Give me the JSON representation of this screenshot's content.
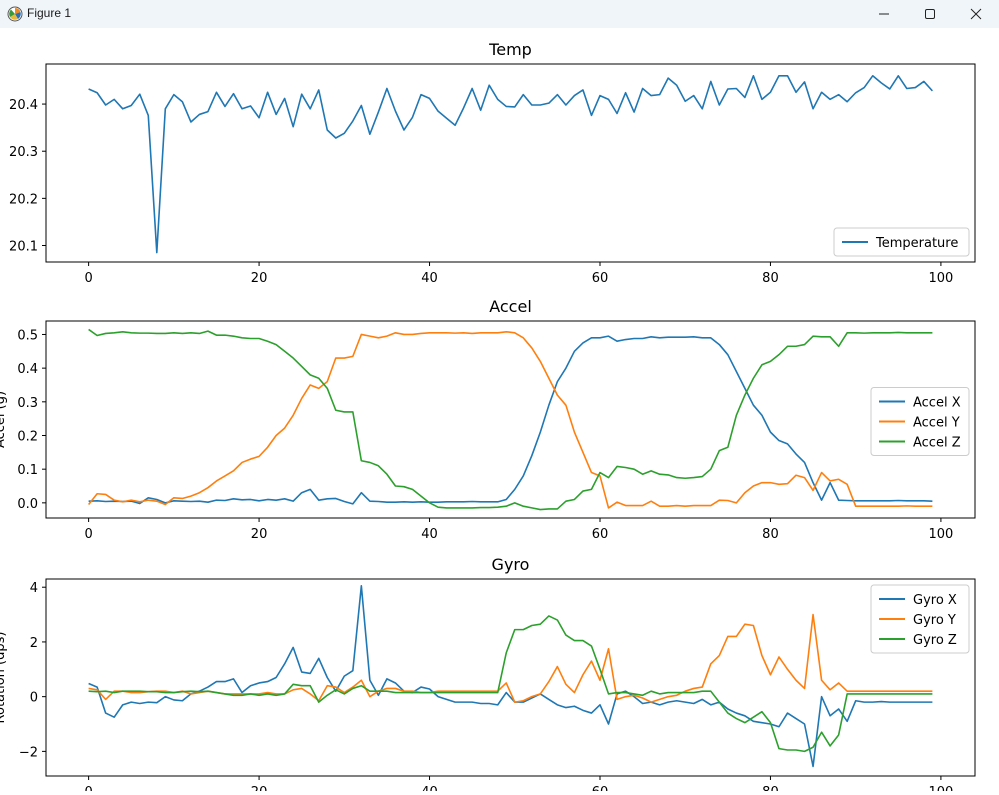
{
  "window": {
    "title": "Figure 1",
    "icons": {
      "app": "matplotlib-figure-icon",
      "minimize": "minimize-icon",
      "maximize": "maximize-icon",
      "close": "close-icon"
    }
  },
  "colors": {
    "c0": "#1f77b4",
    "c1": "#ff7f0e",
    "c2": "#2ca02c"
  },
  "chart_data": [
    {
      "type": "line",
      "title": "Temp",
      "xlabel": "",
      "ylabel": "",
      "xlim": [
        -5,
        104
      ],
      "ylim": [
        20.065,
        20.485
      ],
      "xticks": [
        0,
        20,
        40,
        60,
        80,
        100
      ],
      "yticks": [
        20.1,
        20.2,
        20.3,
        20.4
      ],
      "ytick_labels": [
        "20.1",
        "20.2",
        "20.3",
        "20.4"
      ],
      "grid": false,
      "legend": "lower-right",
      "series": [
        {
          "name": "Temperature",
          "color": "#1f77b4",
          "values": [
            20.432,
            20.424,
            20.398,
            20.41,
            20.39,
            20.397,
            20.421,
            20.376,
            20.085,
            20.39,
            20.42,
            20.405,
            20.362,
            20.378,
            20.384,
            20.425,
            20.395,
            20.422,
            20.39,
            20.396,
            20.371,
            20.425,
            20.378,
            20.412,
            20.352,
            20.421,
            20.39,
            20.43,
            20.345,
            20.328,
            20.338,
            20.364,
            20.397,
            20.336,
            20.383,
            20.433,
            20.385,
            20.345,
            20.372,
            20.42,
            20.412,
            20.385,
            20.37,
            20.355,
            20.392,
            20.433,
            20.387,
            20.44,
            20.41,
            20.395,
            20.394,
            20.42,
            20.398,
            20.398,
            20.402,
            20.42,
            20.398,
            20.418,
            20.43,
            20.376,
            20.418,
            20.41,
            20.38,
            20.424,
            20.383,
            20.433,
            20.418,
            20.42,
            20.455,
            20.44,
            20.406,
            20.418,
            20.39,
            20.448,
            20.398,
            20.432,
            20.433,
            20.414,
            20.46,
            20.41,
            20.425,
            20.46,
            20.46,
            20.425,
            20.447,
            20.39,
            20.425,
            20.41,
            20.42,
            20.405,
            20.424,
            20.435,
            20.46,
            20.445,
            20.432,
            20.46,
            20.433,
            20.435,
            20.448,
            20.428
          ]
        }
      ]
    },
    {
      "type": "line",
      "title": "Accel",
      "xlabel": "",
      "ylabel": "Accel (g)",
      "xlim": [
        -5,
        104
      ],
      "ylim": [
        -0.045,
        0.54
      ],
      "xticks": [
        0,
        20,
        40,
        60,
        80,
        100
      ],
      "yticks": [
        0.0,
        0.1,
        0.2,
        0.3,
        0.4,
        0.5
      ],
      "ytick_labels": [
        "0.0",
        "0.1",
        "0.2",
        "0.3",
        "0.4",
        "0.5"
      ],
      "grid": false,
      "legend": "center-right",
      "series": [
        {
          "name": "Accel X",
          "color": "#1f77b4",
          "values": [
            0.005,
            0.006,
            0.004,
            0.005,
            0.004,
            0.005,
            -0.002,
            0.015,
            0.01,
            0.0,
            0.006,
            0.005,
            0.004,
            0.005,
            0.002,
            0.008,
            0.007,
            0.012,
            0.009,
            0.01,
            0.006,
            0.01,
            0.008,
            0.012,
            0.005,
            0.03,
            0.04,
            0.008,
            0.012,
            0.013,
            0.004,
            -0.003,
            0.03,
            0.005,
            0.004,
            0.002,
            0.002,
            0.003,
            0.002,
            0.003,
            0.002,
            0.002,
            0.003,
            0.003,
            0.003,
            0.004,
            0.003,
            0.003,
            0.003,
            0.01,
            0.04,
            0.08,
            0.14,
            0.21,
            0.29,
            0.36,
            0.4,
            0.45,
            0.475,
            0.49,
            0.49,
            0.495,
            0.48,
            0.485,
            0.488,
            0.488,
            0.493,
            0.49,
            0.492,
            0.492,
            0.492,
            0.493,
            0.49,
            0.49,
            0.47,
            0.44,
            0.39,
            0.34,
            0.29,
            0.26,
            0.21,
            0.185,
            0.175,
            0.145,
            0.12,
            0.06,
            0.008,
            0.06,
            0.008,
            0.007,
            0.006,
            0.006,
            0.006,
            0.006,
            0.006,
            0.007,
            0.006,
            0.006,
            0.006,
            0.005
          ]
        },
        {
          "name": "Accel Y",
          "color": "#ff7f0e",
          "values": [
            -0.005,
            0.027,
            0.025,
            0.008,
            0.003,
            0.008,
            0.003,
            0.008,
            0.005,
            -0.005,
            0.015,
            0.013,
            0.02,
            0.03,
            0.045,
            0.065,
            0.08,
            0.095,
            0.12,
            0.13,
            0.138,
            0.165,
            0.2,
            0.222,
            0.26,
            0.31,
            0.35,
            0.34,
            0.36,
            0.43,
            0.43,
            0.435,
            0.5,
            0.495,
            0.49,
            0.495,
            0.505,
            0.5,
            0.5,
            0.503,
            0.505,
            0.505,
            0.505,
            0.504,
            0.505,
            0.503,
            0.505,
            0.505,
            0.505,
            0.508,
            0.505,
            0.49,
            0.46,
            0.42,
            0.37,
            0.32,
            0.29,
            0.21,
            0.15,
            0.09,
            0.08,
            -0.015,
            0.002,
            -0.008,
            -0.008,
            -0.008,
            0.005,
            -0.01,
            -0.01,
            -0.008,
            -0.01,
            -0.008,
            -0.008,
            -0.008,
            0.008,
            0.007,
            0.0,
            0.03,
            0.05,
            0.06,
            0.06,
            0.055,
            0.057,
            0.082,
            0.075,
            0.037,
            0.09,
            0.065,
            0.07,
            0.055,
            -0.01,
            -0.01,
            -0.01,
            -0.01,
            -0.01,
            -0.01,
            -0.009,
            -0.01,
            -0.01,
            -0.01
          ]
        },
        {
          "name": "Accel Z",
          "color": "#2ca02c",
          "values": [
            0.515,
            0.497,
            0.503,
            0.505,
            0.508,
            0.505,
            0.504,
            0.504,
            0.503,
            0.503,
            0.505,
            0.503,
            0.505,
            0.503,
            0.51,
            0.498,
            0.498,
            0.495,
            0.49,
            0.488,
            0.488,
            0.48,
            0.47,
            0.45,
            0.43,
            0.405,
            0.38,
            0.37,
            0.34,
            0.275,
            0.27,
            0.27,
            0.125,
            0.12,
            0.11,
            0.085,
            0.05,
            0.048,
            0.04,
            0.02,
            0.0,
            -0.013,
            -0.015,
            -0.015,
            -0.015,
            -0.015,
            -0.014,
            -0.014,
            -0.013,
            -0.01,
            0.0,
            -0.01,
            -0.015,
            -0.02,
            -0.018,
            -0.018,
            0.005,
            0.01,
            0.035,
            0.04,
            0.09,
            0.075,
            0.108,
            0.105,
            0.1,
            0.085,
            0.095,
            0.085,
            0.083,
            0.075,
            0.073,
            0.075,
            0.078,
            0.1,
            0.155,
            0.165,
            0.26,
            0.32,
            0.37,
            0.41,
            0.42,
            0.44,
            0.465,
            0.465,
            0.47,
            0.495,
            0.493,
            0.493,
            0.465,
            0.505,
            0.505,
            0.504,
            0.505,
            0.505,
            0.505,
            0.506,
            0.505,
            0.505,
            0.505,
            0.505
          ]
        }
      ]
    },
    {
      "type": "line",
      "title": "Gyro",
      "xlabel": "",
      "ylabel": "Rotation (dps)",
      "xlim": [
        -5,
        104
      ],
      "ylim": [
        -2.9,
        4.3
      ],
      "xticks": [
        0,
        20,
        40,
        60,
        80,
        100
      ],
      "yticks": [
        -2,
        0,
        2,
        4
      ],
      "ytick_labels": [
        "−2",
        "0",
        "2",
        "4"
      ],
      "grid": false,
      "legend": "top-right",
      "series": [
        {
          "name": "Gyro X",
          "color": "#1f77b4",
          "values": [
            0.48,
            0.35,
            -0.6,
            -0.75,
            -0.3,
            -0.2,
            -0.25,
            -0.2,
            -0.22,
            0.0,
            -0.12,
            -0.15,
            0.1,
            0.2,
            0.35,
            0.55,
            0.55,
            0.65,
            0.15,
            0.4,
            0.5,
            0.55,
            0.7,
            1.2,
            1.8,
            0.9,
            0.85,
            1.4,
            0.7,
            0.2,
            0.75,
            0.95,
            4.05,
            0.6,
            0.05,
            0.65,
            0.5,
            0.2,
            0.15,
            0.35,
            0.28,
            0.0,
            -0.1,
            -0.2,
            -0.2,
            -0.2,
            -0.25,
            -0.25,
            -0.3,
            0.15,
            -0.2,
            -0.2,
            -0.05,
            0.1,
            -0.1,
            -0.3,
            -0.4,
            -0.35,
            -0.5,
            -0.6,
            -0.3,
            -1.0,
            0.1,
            0.2,
            0.0,
            -0.25,
            -0.2,
            -0.3,
            -0.2,
            -0.15,
            -0.2,
            -0.25,
            -0.1,
            -0.3,
            -0.2,
            -0.45,
            -0.6,
            -0.7,
            -0.9,
            -0.95,
            -1.0,
            -1.1,
            -0.6,
            -0.8,
            -1.0,
            -2.55,
            0.0,
            -0.7,
            -0.45,
            -0.9,
            -0.15,
            -0.2,
            -0.2,
            -0.18,
            -0.2,
            -0.2,
            -0.2,
            -0.2,
            -0.2,
            -0.2
          ]
        },
        {
          "name": "Gyro Y",
          "color": "#ff7f0e",
          "values": [
            0.3,
            0.25,
            -0.1,
            0.2,
            0.2,
            0.15,
            0.15,
            0.18,
            0.2,
            0.2,
            0.15,
            0.2,
            0.1,
            0.15,
            0.2,
            0.15,
            0.1,
            0.1,
            0.1,
            0.1,
            0.1,
            0.15,
            0.1,
            0.1,
            0.25,
            0.3,
            0.1,
            -0.15,
            0.4,
            0.35,
            0.15,
            0.35,
            0.6,
            0.0,
            0.2,
            0.3,
            0.3,
            0.2,
            0.2,
            0.15,
            0.15,
            0.2,
            0.2,
            0.2,
            0.2,
            0.2,
            0.2,
            0.2,
            0.2,
            0.5,
            -0.2,
            -0.15,
            0.0,
            0.1,
            0.55,
            1.1,
            0.45,
            0.15,
            0.8,
            1.3,
            0.6,
            1.75,
            -0.1,
            0.0,
            0.05,
            -0.05,
            -0.2,
            -0.1,
            0.0,
            0.05,
            0.2,
            0.3,
            0.35,
            1.2,
            1.5,
            2.2,
            2.2,
            2.65,
            2.6,
            1.5,
            0.8,
            1.45,
            1.0,
            0.6,
            0.3,
            3.0,
            0.6,
            0.25,
            0.5,
            0.2,
            0.2,
            0.2,
            0.2,
            0.2,
            0.2,
            0.2,
            0.2,
            0.2,
            0.2,
            0.2
          ]
        },
        {
          "name": "Gyro Z",
          "color": "#2ca02c",
          "values": [
            0.2,
            0.18,
            0.2,
            0.15,
            0.2,
            0.2,
            0.2,
            0.18,
            0.18,
            0.15,
            0.15,
            0.18,
            0.2,
            0.18,
            0.2,
            0.15,
            0.1,
            0.05,
            0.05,
            0.1,
            0.05,
            0.1,
            0.05,
            0.1,
            0.45,
            0.4,
            0.4,
            -0.2,
            0.05,
            0.25,
            0.1,
            0.3,
            0.4,
            0.2,
            0.2,
            0.2,
            0.15,
            0.15,
            0.15,
            0.15,
            0.15,
            0.15,
            0.15,
            0.15,
            0.15,
            0.15,
            0.15,
            0.15,
            0.15,
            1.6,
            2.45,
            2.45,
            2.6,
            2.65,
            2.95,
            2.8,
            2.25,
            2.05,
            2.05,
            1.85,
            1.0,
            0.1,
            0.15,
            0.15,
            0.1,
            0.05,
            0.2,
            0.1,
            0.15,
            0.15,
            0.15,
            0.15,
            0.2,
            0.2,
            -0.2,
            -0.6,
            -0.8,
            -0.95,
            -0.75,
            -0.55,
            -0.95,
            -1.9,
            -1.95,
            -1.95,
            -2.0,
            -1.85,
            -1.3,
            -1.8,
            -1.4,
            0.1,
            0.1,
            0.1,
            0.1,
            0.1,
            0.1,
            0.1,
            0.1,
            0.1,
            0.1,
            0.1
          ]
        }
      ]
    }
  ]
}
